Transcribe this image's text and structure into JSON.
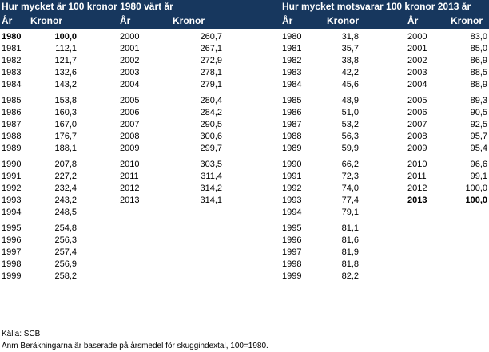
{
  "left": {
    "title": "Hur mycket är 100 kronor 1980 värt år",
    "col_headers": [
      "År",
      "Kronor",
      "År",
      "Kronor"
    ],
    "col1": [
      [
        [
          "1980",
          "100,0",
          true
        ],
        [
          "1981",
          "112,1"
        ],
        [
          "1982",
          "121,7"
        ],
        [
          "1983",
          "132,6"
        ],
        [
          "1984",
          "143,2"
        ]
      ],
      [
        [
          "1985",
          "153,8"
        ],
        [
          "1986",
          "160,3"
        ],
        [
          "1987",
          "167,0"
        ],
        [
          "1988",
          "176,7"
        ],
        [
          "1989",
          "188,1"
        ]
      ],
      [
        [
          "1990",
          "207,8"
        ],
        [
          "1991",
          "227,2"
        ],
        [
          "1992",
          "232,4"
        ],
        [
          "1993",
          "243,2"
        ],
        [
          "1994",
          "248,5"
        ]
      ],
      [
        [
          "1995",
          "254,8"
        ],
        [
          "1996",
          "256,3"
        ],
        [
          "1997",
          "257,4"
        ],
        [
          "1998",
          "256,9"
        ],
        [
          "1999",
          "258,2"
        ]
      ]
    ],
    "col2": [
      [
        [
          "2000",
          "260,7"
        ],
        [
          "2001",
          "267,1"
        ],
        [
          "2002",
          "272,9"
        ],
        [
          "2003",
          "278,1"
        ],
        [
          "2004",
          "279,1"
        ]
      ],
      [
        [
          "2005",
          "280,4"
        ],
        [
          "2006",
          "284,2"
        ],
        [
          "2007",
          "290,5"
        ],
        [
          "2008",
          "300,6"
        ],
        [
          "2009",
          "299,7"
        ]
      ],
      [
        [
          "2010",
          "303,5"
        ],
        [
          "2011",
          "311,4"
        ],
        [
          "2012",
          "314,2"
        ],
        [
          "2013",
          "314,1"
        ]
      ]
    ]
  },
  "right": {
    "title": "Hur mycket motsvarar 100 kronor 2013 år",
    "col_headers": [
      "År",
      "Kronor",
      "År",
      "Kronor"
    ],
    "col1": [
      [
        [
          "1980",
          "31,8"
        ],
        [
          "1981",
          "35,7"
        ],
        [
          "1982",
          "38,8"
        ],
        [
          "1983",
          "42,2"
        ],
        [
          "1984",
          "45,6"
        ]
      ],
      [
        [
          "1985",
          "48,9"
        ],
        [
          "1986",
          "51,0"
        ],
        [
          "1987",
          "53,2"
        ],
        [
          "1988",
          "56,3"
        ],
        [
          "1989",
          "59,9"
        ]
      ],
      [
        [
          "1990",
          "66,2"
        ],
        [
          "1991",
          "72,3"
        ],
        [
          "1992",
          "74,0"
        ],
        [
          "1993",
          "77,4"
        ],
        [
          "1994",
          "79,1"
        ]
      ],
      [
        [
          "1995",
          "81,1"
        ],
        [
          "1996",
          "81,6"
        ],
        [
          "1997",
          "81,9"
        ],
        [
          "1998",
          "81,8"
        ],
        [
          "1999",
          "82,2"
        ]
      ]
    ],
    "col2": [
      [
        [
          "2000",
          "83,0"
        ],
        [
          "2001",
          "85,0"
        ],
        [
          "2002",
          "86,9"
        ],
        [
          "2003",
          "88,5"
        ],
        [
          "2004",
          "88,9"
        ]
      ],
      [
        [
          "2005",
          "89,3"
        ],
        [
          "2006",
          "90,5"
        ],
        [
          "2007",
          "92,5"
        ],
        [
          "2008",
          "95,7"
        ],
        [
          "2009",
          "95,4"
        ]
      ],
      [
        [
          "2010",
          "96,6"
        ],
        [
          "2011",
          "99,1"
        ],
        [
          "2012",
          "100,0"
        ],
        [
          "2013",
          "100,0",
          true
        ]
      ]
    ]
  },
  "notes": {
    "source": "Källa:  SCB",
    "remark": "Anm  Beräkningarna är baserade på årsmedel för skuggindextal, 100=1980."
  }
}
